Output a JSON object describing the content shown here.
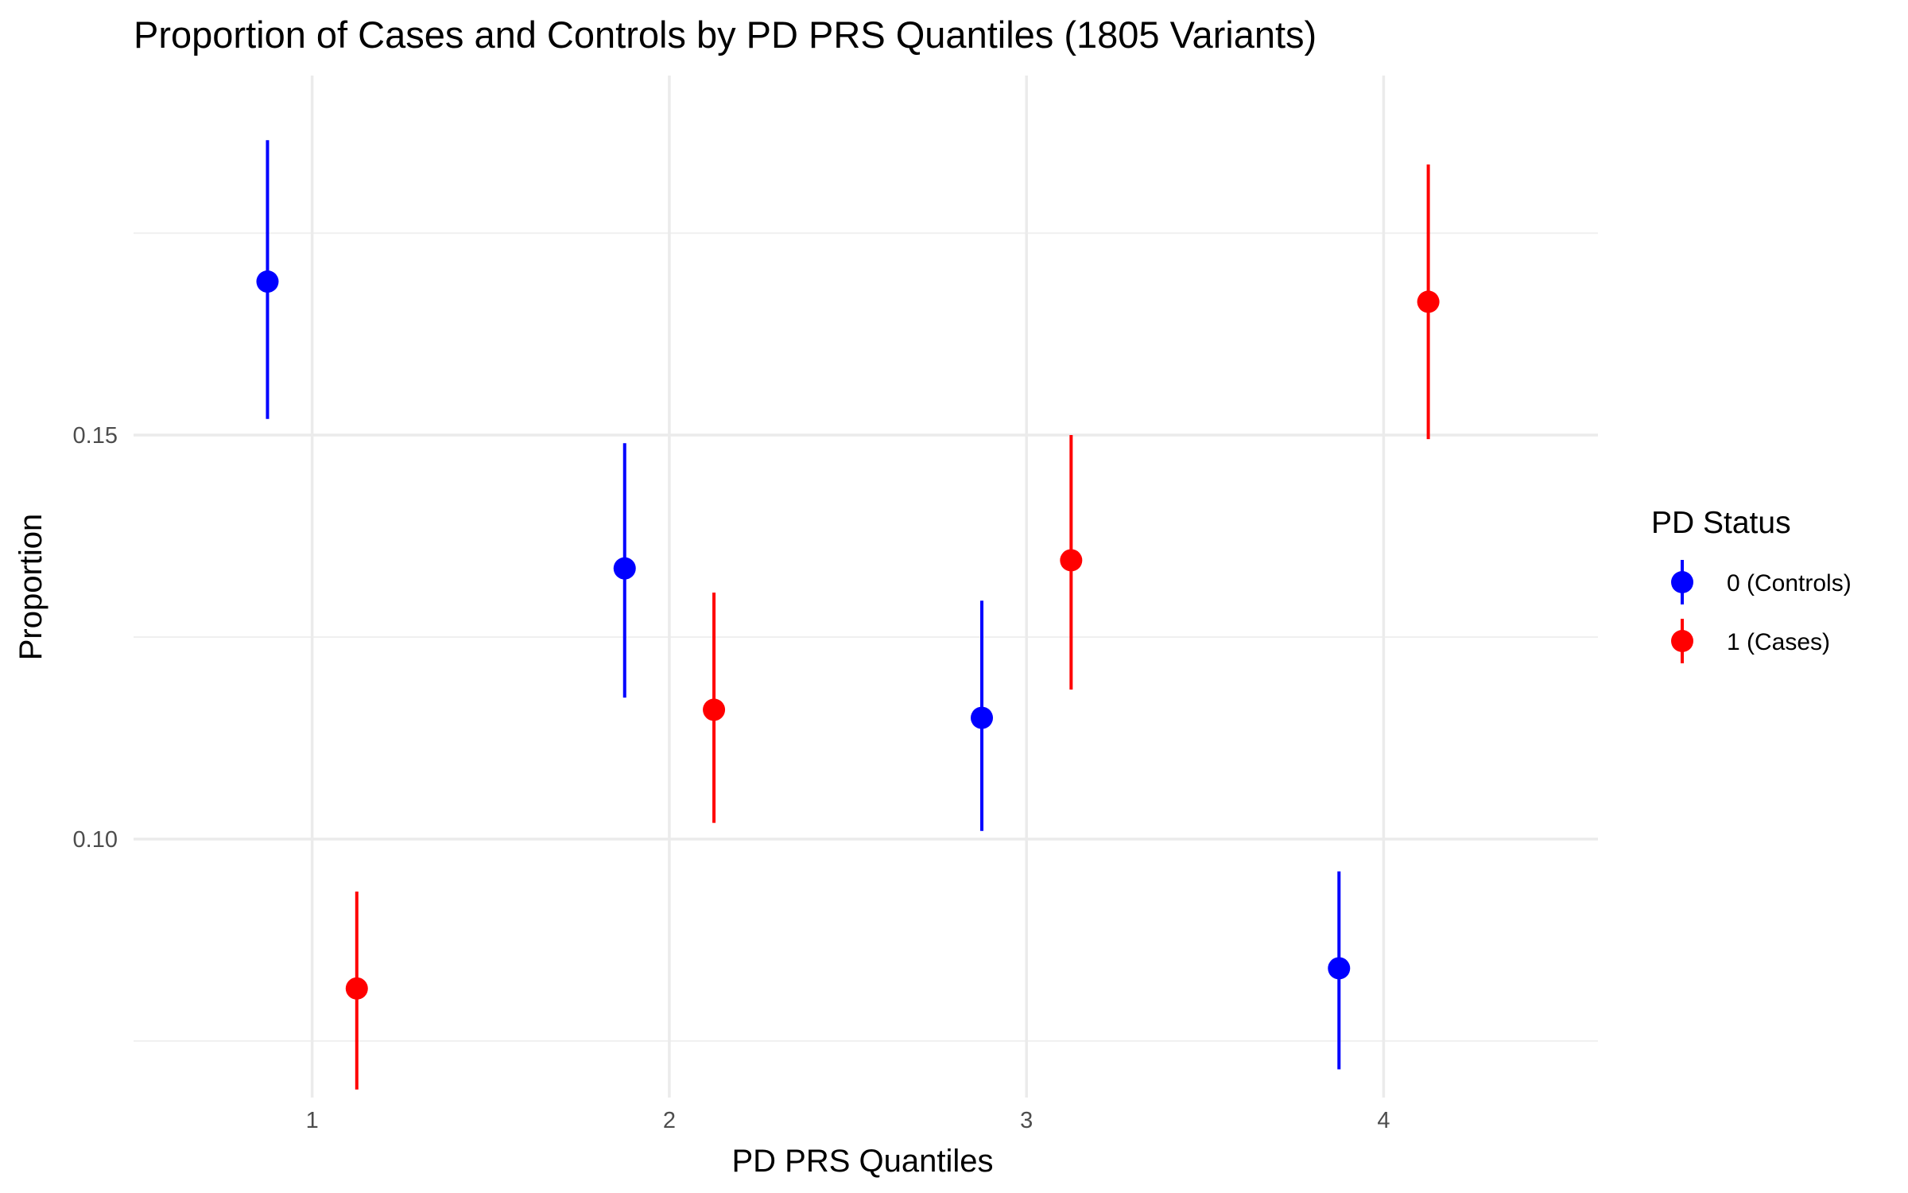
{
  "chart_data": {
    "type": "scatter",
    "title": "Proportion of Cases and Controls by PD PRS Quantiles (1805 Variants)",
    "xlabel": "PD PRS Quantiles",
    "ylabel": "Proportion",
    "x_ticks": [
      "1",
      "2",
      "3",
      "4"
    ],
    "y_ticks": [
      "0.10",
      "0.15"
    ],
    "xlim": [
      0.5,
      4.6
    ],
    "ylim": [
      0.068,
      0.1945
    ],
    "grid": true,
    "legend": {
      "title": "PD Status",
      "placement": "right"
    },
    "dodge": 0.125,
    "series": [
      {
        "name": "0 (Controls)",
        "color": "#0000ff",
        "points": [
          {
            "x": 1,
            "y": 0.169,
            "lower": 0.152,
            "upper": 0.1865
          },
          {
            "x": 2,
            "y": 0.1335,
            "lower": 0.1175,
            "upper": 0.149
          },
          {
            "x": 3,
            "y": 0.115,
            "lower": 0.101,
            "upper": 0.1295
          },
          {
            "x": 4,
            "y": 0.084,
            "lower": 0.0715,
            "upper": 0.096
          }
        ]
      },
      {
        "name": "1 (Cases)",
        "color": "#ff0000",
        "points": [
          {
            "x": 1,
            "y": 0.0815,
            "lower": 0.069,
            "upper": 0.0935
          },
          {
            "x": 2,
            "y": 0.116,
            "lower": 0.102,
            "upper": 0.1305
          },
          {
            "x": 3,
            "y": 0.1345,
            "lower": 0.1185,
            "upper": 0.15
          },
          {
            "x": 4,
            "y": 0.1665,
            "lower": 0.1495,
            "upper": 0.1835
          }
        ]
      }
    ]
  }
}
